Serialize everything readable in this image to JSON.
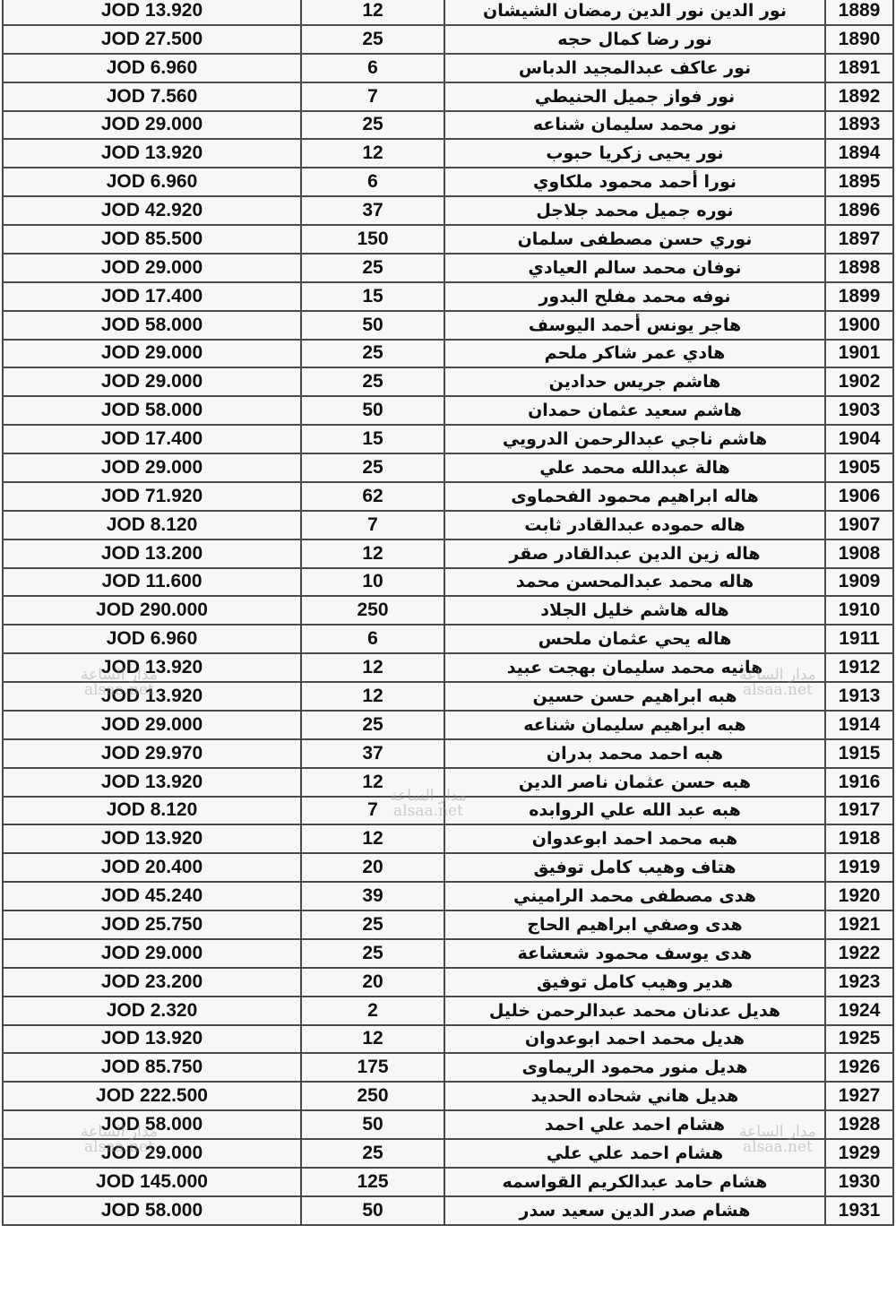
{
  "currency": "JOD",
  "rows": [
    {
      "no": "1889",
      "name": "نور الدين نور الدين رمضان الشيشان",
      "qty": "12",
      "amount": "JOD 13.920"
    },
    {
      "no": "1890",
      "name": "نور رضا كمال حجه",
      "qty": "25",
      "amount": "JOD 27.500"
    },
    {
      "no": "1891",
      "name": "نور عاكف عبدالمجيد الدباس",
      "qty": "6",
      "amount": "JOD 6.960"
    },
    {
      "no": "1892",
      "name": "نور فواز جميل الحنيطي",
      "qty": "7",
      "amount": "JOD 7.560"
    },
    {
      "no": "1893",
      "name": "نور محمد سليمان شناعه",
      "qty": "25",
      "amount": "JOD 29.000"
    },
    {
      "no": "1894",
      "name": "نور يحيى زكريا حبوب",
      "qty": "12",
      "amount": "JOD 13.920"
    },
    {
      "no": "1895",
      "name": "نورا أحمد محمود ملكاوي",
      "qty": "6",
      "amount": "JOD 6.960"
    },
    {
      "no": "1896",
      "name": "نوره جميل محمد جلاجل",
      "qty": "37",
      "amount": "JOD 42.920"
    },
    {
      "no": "1897",
      "name": "نوري حسن مصطفى سلمان",
      "qty": "150",
      "amount": "JOD 85.500"
    },
    {
      "no": "1898",
      "name": "نوفان محمد سالم العيادي",
      "qty": "25",
      "amount": "JOD 29.000"
    },
    {
      "no": "1899",
      "name": "نوفه محمد مفلح البدور",
      "qty": "15",
      "amount": "JOD 17.400"
    },
    {
      "no": "1900",
      "name": "هاجر يونس أحمد اليوسف",
      "qty": "50",
      "amount": "JOD 58.000"
    },
    {
      "no": "1901",
      "name": "هادي عمر شاكر ملحم",
      "qty": "25",
      "amount": "JOD 29.000"
    },
    {
      "no": "1902",
      "name": "هاشم جريس حدادين",
      "qty": "25",
      "amount": "JOD 29.000"
    },
    {
      "no": "1903",
      "name": "هاشم سعيد عثمان حمدان",
      "qty": "50",
      "amount": "JOD 58.000"
    },
    {
      "no": "1904",
      "name": "هاشم ناجي عبدالرحمن الدرويي",
      "qty": "15",
      "amount": "JOD 17.400"
    },
    {
      "no": "1905",
      "name": "هالة عبدالله محمد علي",
      "qty": "25",
      "amount": "JOD 29.000"
    },
    {
      "no": "1906",
      "name": "هاله ابراهيم محمود الفحماوى",
      "qty": "62",
      "amount": "JOD 71.920"
    },
    {
      "no": "1907",
      "name": "هاله حموده عبدالقادر ثابت",
      "qty": "7",
      "amount": "JOD 8.120"
    },
    {
      "no": "1908",
      "name": "هاله زين الدين عبدالقادر صقر",
      "qty": "12",
      "amount": "JOD 13.200"
    },
    {
      "no": "1909",
      "name": "هاله محمد عبدالمحسن محمد",
      "qty": "10",
      "amount": "JOD 11.600"
    },
    {
      "no": "1910",
      "name": "هاله هاشم خليل الجلاد",
      "qty": "250",
      "amount": "JOD 290.000"
    },
    {
      "no": "1911",
      "name": "هاله يحي عثمان ملحس",
      "qty": "6",
      "amount": "JOD 6.960"
    },
    {
      "no": "1912",
      "name": "هانيه محمد سليمان بهجت عبيد",
      "qty": "12",
      "amount": "JOD 13.920"
    },
    {
      "no": "1913",
      "name": "هبه ابراهيم حسن حسين",
      "qty": "12",
      "amount": "JOD 13.920"
    },
    {
      "no": "1914",
      "name": "هبه ابراهيم سليمان شناعه",
      "qty": "25",
      "amount": "JOD 29.000"
    },
    {
      "no": "1915",
      "name": "هبه احمد محمد بدران",
      "qty": "37",
      "amount": "JOD 29.970"
    },
    {
      "no": "1916",
      "name": "هبه حسن عثمان ناصر الدين",
      "qty": "12",
      "amount": "JOD 13.920"
    },
    {
      "no": "1917",
      "name": "هبه عبد الله علي الروابده",
      "qty": "7",
      "amount": "JOD 8.120"
    },
    {
      "no": "1918",
      "name": "هبه محمد احمد ابوعدوان",
      "qty": "12",
      "amount": "JOD 13.920"
    },
    {
      "no": "1919",
      "name": "هتاف وهيب كامل توفيق",
      "qty": "20",
      "amount": "JOD 20.400"
    },
    {
      "no": "1920",
      "name": "هدى مصطفى محمد الراميني",
      "qty": "39",
      "amount": "JOD 45.240"
    },
    {
      "no": "1921",
      "name": "هدى وصفي ابراهيم الحاج",
      "qty": "25",
      "amount": "JOD 25.750"
    },
    {
      "no": "1922",
      "name": "هدى يوسف محمود شعشاعة",
      "qty": "25",
      "amount": "JOD 29.000"
    },
    {
      "no": "1923",
      "name": "هدير وهيب كامل توفيق",
      "qty": "20",
      "amount": "JOD 23.200"
    },
    {
      "no": "1924",
      "name": "هديل عدنان محمد عبدالرحمن خليل",
      "qty": "2",
      "amount": "JOD 2.320"
    },
    {
      "no": "1925",
      "name": "هديل محمد احمد ابوعدوان",
      "qty": "12",
      "amount": "JOD 13.920"
    },
    {
      "no": "1926",
      "name": "هديل منور محمود الريماوى",
      "qty": "175",
      "amount": "JOD 85.750"
    },
    {
      "no": "1927",
      "name": "هديل هاني شحاده الحديد",
      "qty": "250",
      "amount": "JOD 222.500"
    },
    {
      "no": "1928",
      "name": "هشام احمد علي احمد",
      "qty": "50",
      "amount": "JOD 58.000"
    },
    {
      "no": "1929",
      "name": "هشام احمد علي علي",
      "qty": "25",
      "amount": "JOD 29.000"
    },
    {
      "no": "1930",
      "name": "هشام حامد عبدالكريم القواسمه",
      "qty": "125",
      "amount": "JOD 145.000"
    },
    {
      "no": "1931",
      "name": "هشام صدر الدين سعيد سدر",
      "qty": "50",
      "amount": "JOD 58.000"
    }
  ],
  "watermark": {
    "arabic": "مدار الساعة",
    "latin": "alsaa.net"
  }
}
